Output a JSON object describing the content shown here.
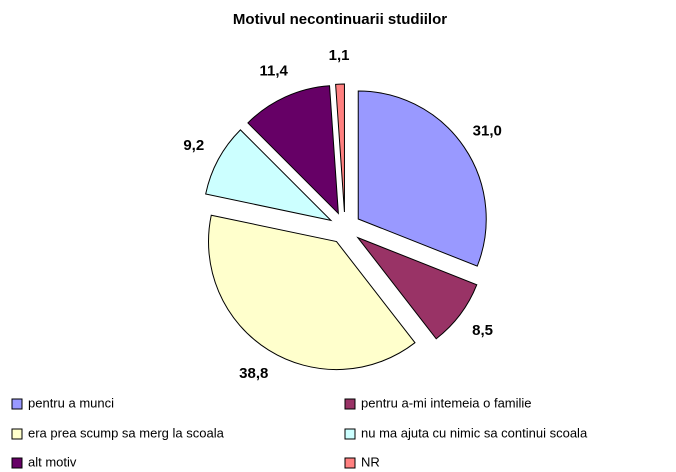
{
  "chart_data": {
    "type": "pie",
    "title": "Motivul necontinuarii studiilor",
    "categories": [
      "pentru a munci",
      "pentru a-mi intemeia o familie",
      "era prea scump sa merg la scoala",
      "nu ma ajuta cu nimic sa continui scoala",
      "alt motiv",
      "NR"
    ],
    "values": [
      31.0,
      8.5,
      38.8,
      9.2,
      11.4,
      1.1
    ],
    "value_labels": [
      "31,0",
      "8,5",
      "38,8",
      "9,2",
      "11,4",
      "1,1"
    ],
    "colors": [
      "#9999ff",
      "#993366",
      "#ffffcc",
      "#ccffff",
      "#660066",
      "#ff8080"
    ],
    "legend": "bottom"
  }
}
